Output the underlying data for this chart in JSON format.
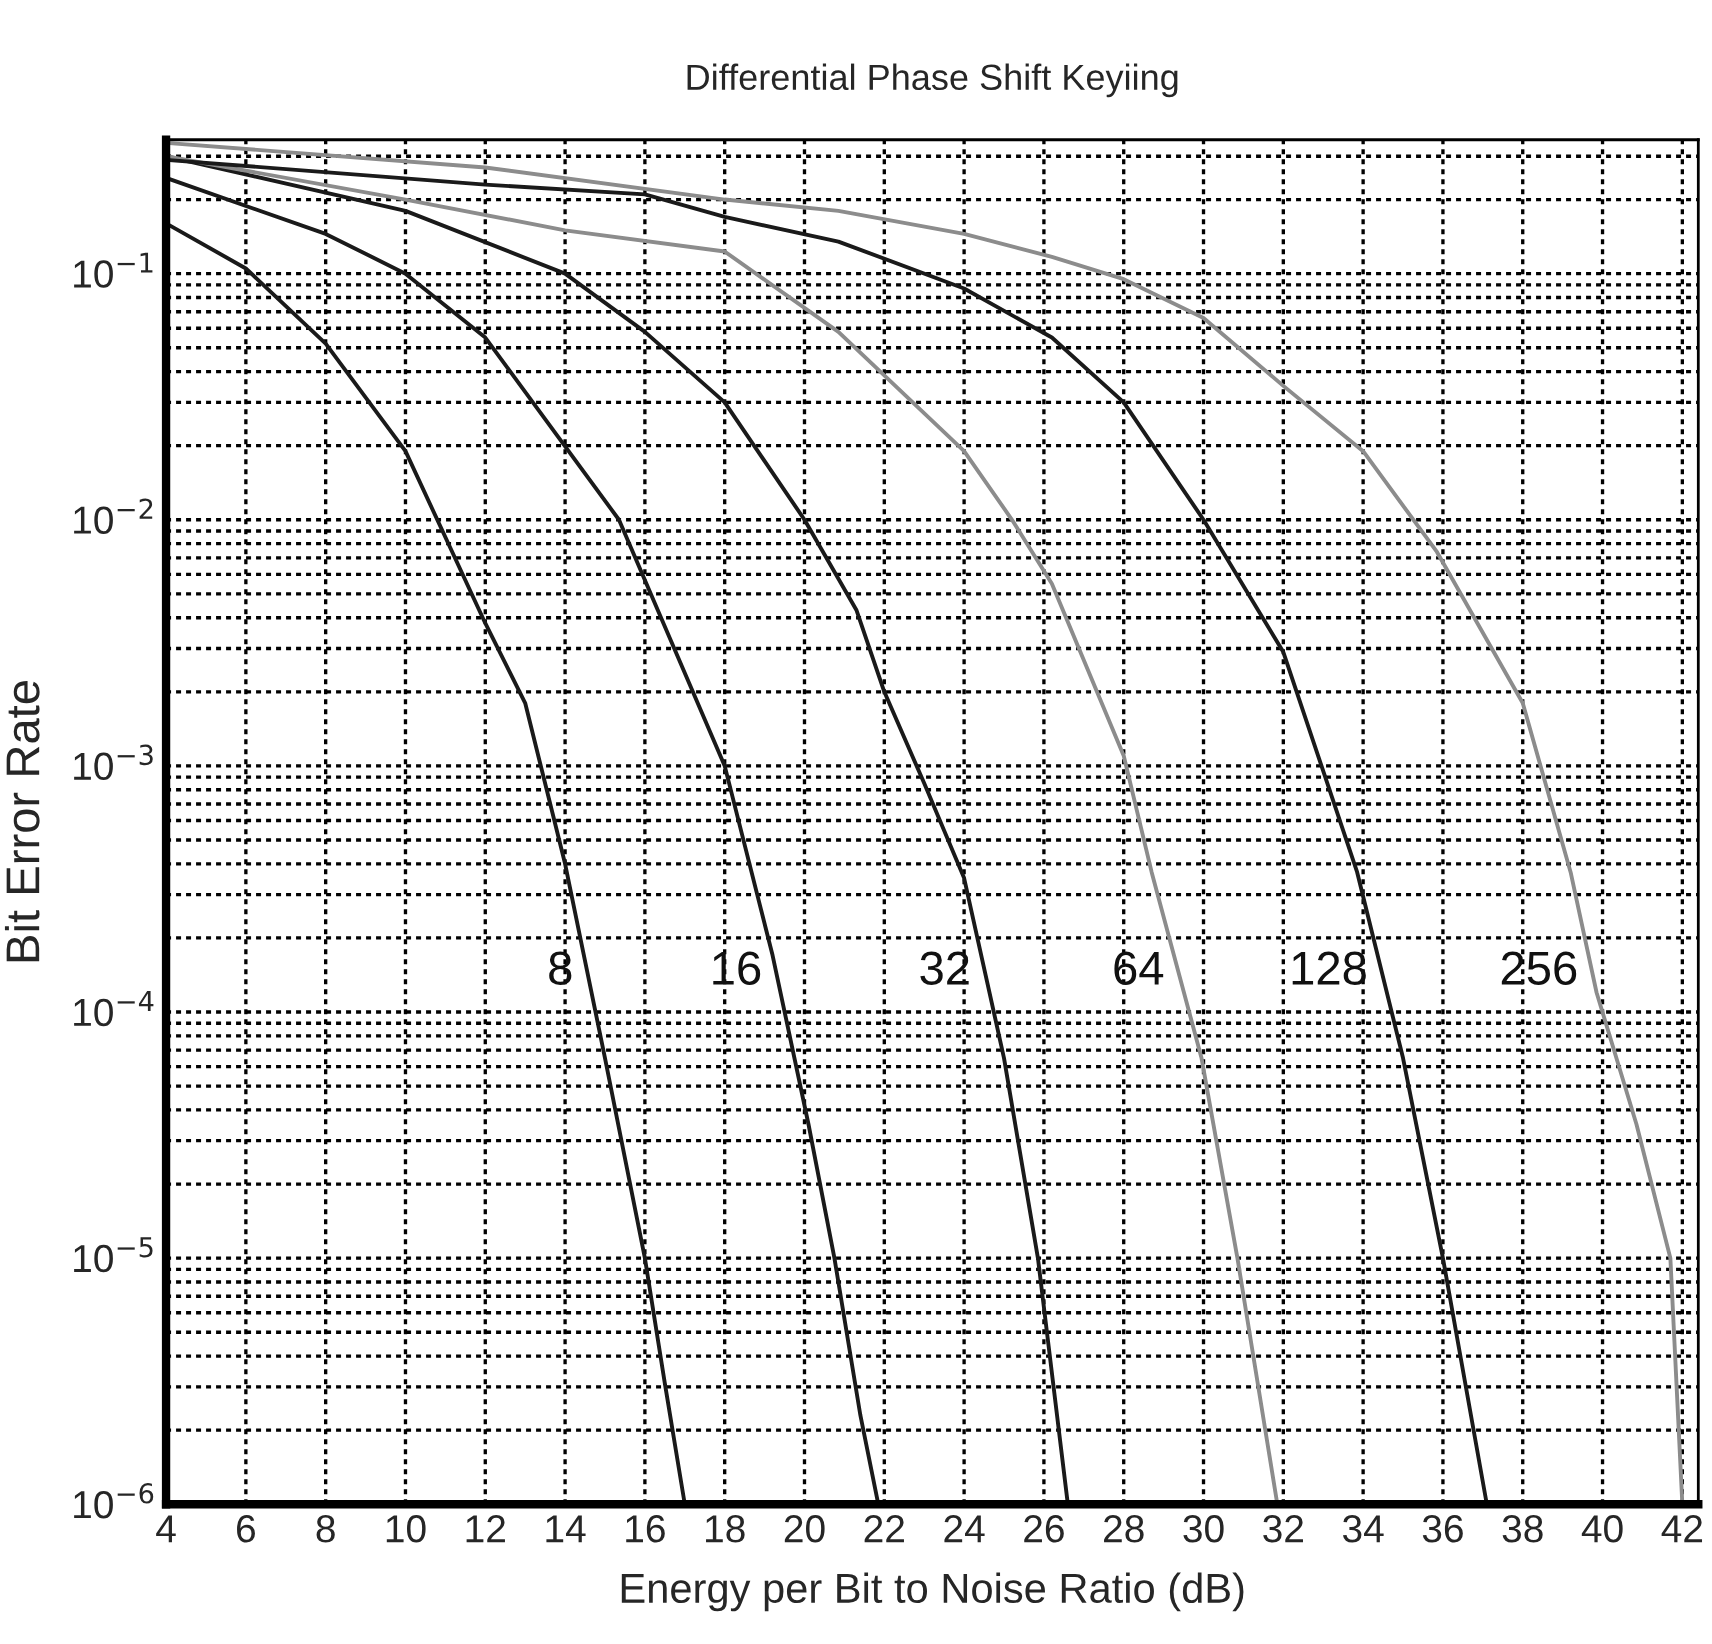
{
  "chart_data": {
    "type": "line",
    "title": "Differential Phase Shift Keyiing",
    "xlabel": "Energy per Bit to Noise Ratio (dB)",
    "ylabel": "Bit Error Rate",
    "log": "y",
    "grid": true,
    "legend": false,
    "marker": "none",
    "line_style": "solid",
    "xlim": [
      4,
      42.4
    ],
    "xticks": [
      4,
      6,
      8,
      10,
      12,
      14,
      16,
      18,
      20,
      22,
      24,
      26,
      28,
      30,
      32,
      34,
      36,
      38,
      40,
      42
    ],
    "ylim": [
      1e-06,
      0.35
    ],
    "yticks": [
      {
        "value": 1e-06,
        "label": "10$^{−6}$"
      },
      {
        "value": 1e-05,
        "label": "10$^{−5}$"
      },
      {
        "value": 0.0001,
        "label": "10$^{−4}$"
      },
      {
        "value": 0.001,
        "label": "10$^{−3}$"
      },
      {
        "value": 0.01,
        "label": "10$^{−2}$"
      },
      {
        "value": 0.1,
        "label": "10$^{−1}$"
      }
    ],
    "series": [
      {
        "name": "8",
        "color": "#1a1a1a",
        "x": [
          4,
          6,
          8,
          10,
          12,
          13,
          14,
          15,
          16,
          16.5,
          17
        ],
        "values": [
          0.16,
          0.105,
          0.052,
          0.019,
          0.0038,
          0.0018,
          0.0004,
          6.5e-05,
          1e-05,
          3.1e-06,
          1e-06
        ]
      },
      {
        "name": "16",
        "color": "#1a1a1a",
        "x": [
          4,
          8,
          10,
          12,
          15.35,
          18,
          19.2,
          20.1,
          20.75,
          21.4,
          21.85
        ],
        "values": [
          0.245,
          0.145,
          0.1,
          0.055,
          0.01,
          0.001,
          0.00017,
          3.5e-05,
          1e-05,
          2.3e-06,
          1e-06
        ]
      },
      {
        "name": "32",
        "color": "#1a1a1a",
        "x": [
          4,
          10,
          14,
          16,
          18,
          20,
          21.3,
          22,
          23,
          24,
          25,
          25.85,
          26.6
        ],
        "values": [
          0.3,
          0.18,
          0.1,
          0.058,
          0.03,
          0.01,
          0.0043,
          0.002,
          0.00085,
          0.00035,
          6.5e-05,
          1e-05,
          1e-06
        ]
      },
      {
        "name": "64",
        "color": "#8c8c8c",
        "x": [
          4,
          10,
          14,
          18,
          20.85,
          24,
          25.2,
          26.2,
          28,
          28.7,
          29.95,
          30.85,
          31.85
        ],
        "values": [
          0.3,
          0.2,
          0.15,
          0.123,
          0.058,
          0.019,
          0.01,
          0.0055,
          0.0011,
          0.00037,
          6.5e-05,
          1e-05,
          1e-06
        ]
      },
      {
        "name": "128",
        "color": "#1a1a1a",
        "x": [
          4,
          12,
          16,
          18,
          20.85,
          24,
          26.2,
          28,
          30,
          32,
          33.85,
          35,
          36,
          37.1
        ],
        "values": [
          0.29,
          0.23,
          0.21,
          0.17,
          0.135,
          0.087,
          0.055,
          0.03,
          0.01,
          0.0029,
          0.00037,
          6.5e-05,
          1e-05,
          1e-06
        ]
      },
      {
        "name": "256",
        "color": "#8c8c8c",
        "x": [
          4,
          12,
          18,
          20.85,
          24,
          26.2,
          28,
          30,
          32,
          34,
          35.85,
          38,
          39.2,
          39.85,
          40.85,
          41.7,
          42
        ],
        "values": [
          0.34,
          0.27,
          0.2,
          0.18,
          0.145,
          0.117,
          0.095,
          0.066,
          0.035,
          0.019,
          0.0074,
          0.0018,
          0.00037,
          0.00012,
          3.5e-05,
          1e-05,
          1e-06
        ]
      }
    ]
  }
}
